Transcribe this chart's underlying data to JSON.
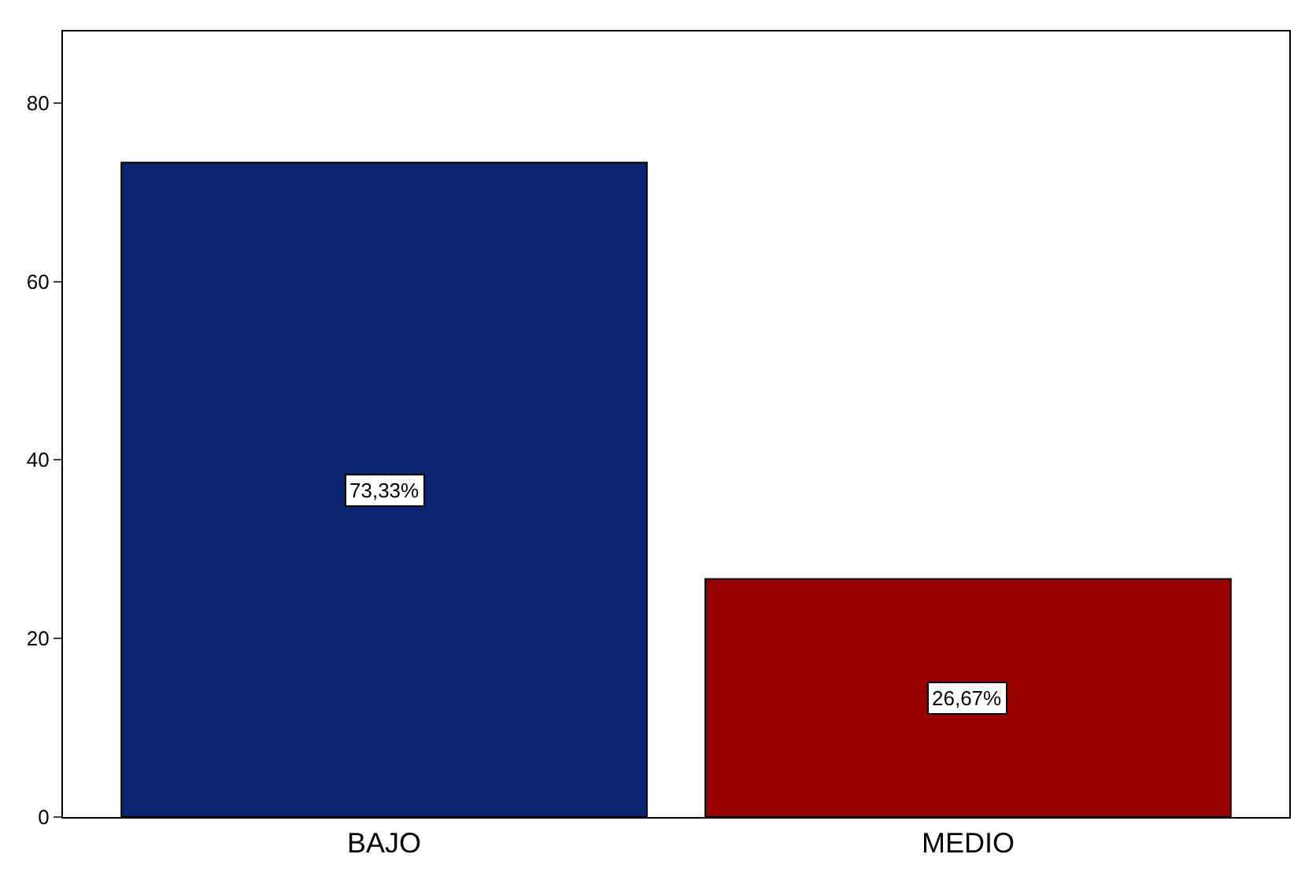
{
  "chart_data": {
    "type": "bar",
    "categories": [
      "BAJO",
      "MEDIO"
    ],
    "values": [
      73.33,
      26.67
    ],
    "colors": [
      "#0a2470",
      "#990000"
    ],
    "value_labels": [
      "73,33%",
      "26,67%"
    ],
    "ylim": [
      0,
      88
    ],
    "yticks": [
      0,
      20,
      40,
      60,
      80
    ],
    "grid": false,
    "legend": false
  }
}
